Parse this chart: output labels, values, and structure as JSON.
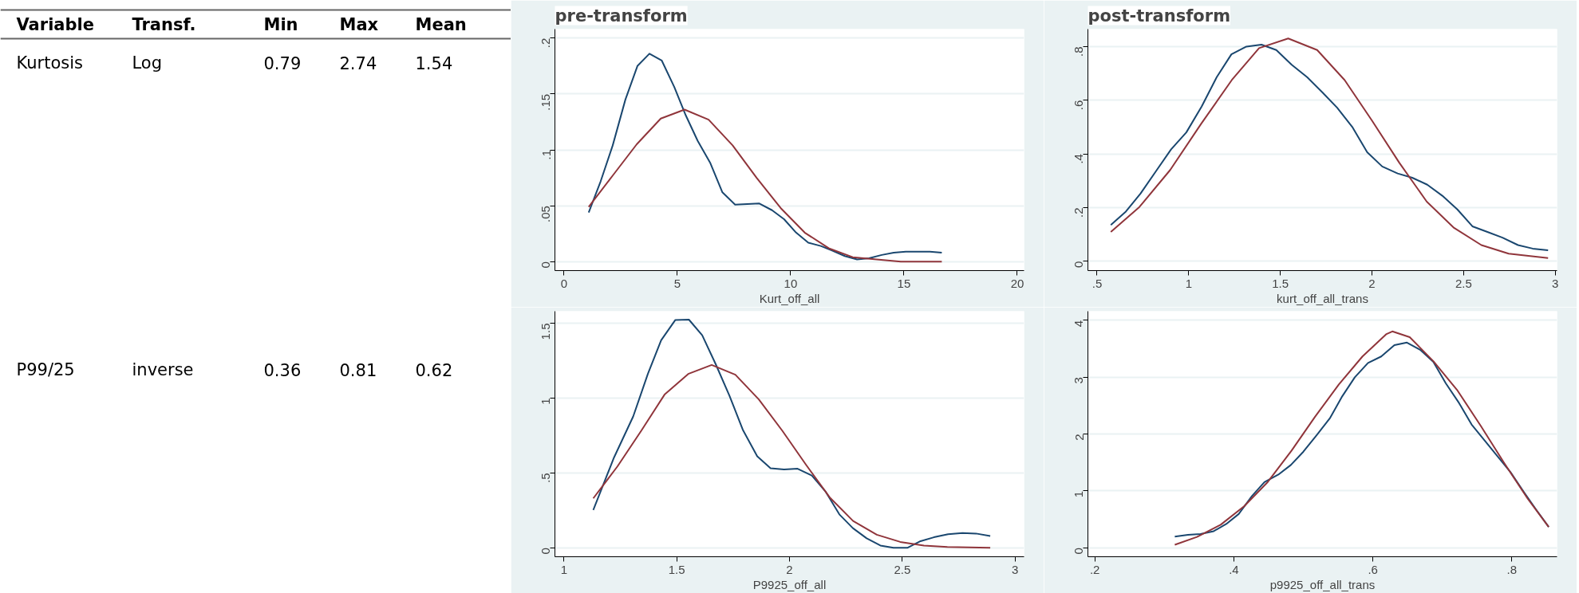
{
  "chart_data": [
    {
      "type": "other",
      "annotations": [
        "Variable",
        "Transf.",
        "Min",
        "Max",
        "Mean",
        "Kurtosis",
        "Log",
        "0.79",
        "2.74",
        "1.54",
        "P99/25",
        "inverse",
        "0.36",
        "0.81",
        "0.62"
      ]
    },
    {
      "type": "line",
      "title": "pre-transform",
      "xlabel": "Kurt_off_all",
      "grid": "y",
      "xlim": [
        -0.4,
        20.3
      ],
      "ylim": [
        -0.008,
        0.208
      ],
      "xticks": [
        0,
        5,
        10,
        15,
        20
      ],
      "yticks": [
        {
          "value": 0,
          "label": "0"
        },
        {
          "value": 0.05,
          "label": ".05"
        },
        {
          "value": 0.1,
          "label": ".1"
        },
        {
          "value": 0.15,
          "label": ".15"
        },
        {
          "value": 0.2,
          "label": ".2"
        }
      ],
      "series": [
        {
          "color": "#1a476f",
          "x": [
            1.09,
            1.62,
            2.15,
            2.71,
            3.24,
            3.77,
            4.31,
            4.87,
            5.37,
            5.9,
            6.46,
            6.99,
            7.55,
            8.62,
            9.18,
            9.71,
            10.24,
            10.78,
            11.33,
            11.83,
            12.39,
            12.93,
            13.46,
            14.02,
            14.55,
            15.08,
            15.61,
            16.14,
            16.67
          ],
          "values": [
            0.044,
            0.072,
            0.104,
            0.145,
            0.175,
            0.186,
            0.18,
            0.156,
            0.131,
            0.108,
            0.088,
            0.062,
            0.051,
            0.052,
            0.046,
            0.038,
            0.026,
            0.017,
            0.014,
            0.01,
            0.005,
            0.002,
            0.003,
            0.006,
            0.008,
            0.009,
            0.009,
            0.009,
            0.008
          ]
        },
        {
          "color": "#90353b",
          "x": [
            1.09,
            2.15,
            3.21,
            4.27,
            5.32,
            6.38,
            7.44,
            8.5,
            9.56,
            10.62,
            11.68,
            12.74,
            13.8,
            14.86,
            16.67
          ],
          "values": [
            0.049,
            0.077,
            0.105,
            0.128,
            0.136,
            0.127,
            0.104,
            0.075,
            0.048,
            0.026,
            0.012,
            0.004,
            0.002,
            0.0,
            0.0
          ]
        }
      ]
    },
    {
      "type": "line",
      "title": "post-transform",
      "xlabel": "kurt_off_all_trans",
      "grid": "y",
      "xlim": [
        0.45,
        3.01
      ],
      "ylim": [
        -0.035,
        0.865
      ],
      "xticks": [
        {
          "value": 0.5,
          "label": ".5"
        },
        1,
        1.5,
        2,
        2.5,
        3
      ],
      "yticks": [
        {
          "value": 0,
          "label": "0"
        },
        {
          "value": 0.2,
          "label": ".2"
        },
        {
          "value": 0.4,
          "label": ".4"
        },
        {
          "value": 0.6,
          "label": ".6"
        },
        {
          "value": 0.8,
          "label": ".8"
        }
      ],
      "series": [
        {
          "color": "#1a476f",
          "x": [
            0.575,
            0.657,
            0.737,
            0.82,
            0.904,
            0.987,
            1.071,
            1.153,
            1.233,
            1.315,
            1.397,
            1.478,
            1.562,
            1.646,
            1.73,
            1.81,
            1.892,
            1.974,
            2.056,
            2.14,
            2.22,
            2.302,
            2.384,
            2.466,
            2.548,
            2.63,
            2.712,
            2.797,
            2.877,
            2.961
          ],
          "values": [
            0.135,
            0.185,
            0.252,
            0.334,
            0.417,
            0.48,
            0.577,
            0.686,
            0.771,
            0.8,
            0.807,
            0.787,
            0.732,
            0.686,
            0.629,
            0.572,
            0.501,
            0.406,
            0.353,
            0.327,
            0.311,
            0.285,
            0.244,
            0.193,
            0.13,
            0.109,
            0.088,
            0.06,
            0.047,
            0.041
          ]
        },
        {
          "color": "#90353b",
          "x": [
            0.575,
            0.731,
            0.899,
            1.067,
            1.235,
            1.384,
            1.543,
            1.701,
            1.851,
            2.0,
            2.149,
            2.299,
            2.448,
            2.597,
            2.746,
            2.961
          ],
          "values": [
            0.109,
            0.202,
            0.34,
            0.511,
            0.675,
            0.794,
            0.83,
            0.787,
            0.675,
            0.524,
            0.367,
            0.222,
            0.124,
            0.06,
            0.028,
            0.012
          ]
        }
      ]
    },
    {
      "type": "line",
      "xlabel": "P9925_off_all",
      "grid": "y",
      "xlim": [
        0.96,
        3.04
      ],
      "ylim": [
        -0.06,
        1.58
      ],
      "xticks": [
        1,
        1.5,
        2,
        2.5,
        3
      ],
      "yticks": [
        {
          "value": 0,
          "label": "0"
        },
        {
          "value": 0.5,
          "label": ".5"
        },
        1,
        1.5
      ],
      "series": [
        {
          "color": "#1a476f",
          "x": [
            1.13,
            1.222,
            1.307,
            1.372,
            1.431,
            1.494,
            1.554,
            1.613,
            1.673,
            1.734,
            1.794,
            1.857,
            1.916,
            1.976,
            2.036,
            2.099,
            2.161,
            2.221,
            2.281,
            2.342,
            2.403,
            2.461,
            2.524,
            2.581,
            2.64,
            2.703,
            2.767,
            2.827,
            2.89
          ],
          "values": [
            0.252,
            0.603,
            0.877,
            1.161,
            1.386,
            1.522,
            1.524,
            1.42,
            1.226,
            1.015,
            0.785,
            0.611,
            0.531,
            0.523,
            0.528,
            0.482,
            0.373,
            0.223,
            0.131,
            0.063,
            0.015,
            0.0,
            0.0,
            0.044,
            0.07,
            0.09,
            0.099,
            0.095,
            0.078
          ]
        },
        {
          "color": "#90353b",
          "x": [
            1.13,
            1.237,
            1.342,
            1.446,
            1.551,
            1.655,
            1.76,
            1.864,
            1.969,
            2.073,
            2.178,
            2.282,
            2.387,
            2.491,
            2.596,
            2.7,
            2.89
          ],
          "values": [
            0.33,
            0.543,
            0.78,
            1.023,
            1.161,
            1.221,
            1.156,
            0.991,
            0.78,
            0.555,
            0.337,
            0.179,
            0.087,
            0.039,
            0.015,
            0.005,
            0.0
          ]
        }
      ]
    },
    {
      "type": "line",
      "xlabel": "p9925_off_all_trans",
      "grid": "y",
      "xlim": [
        0.19,
        0.865
      ],
      "ylim": [
        -0.16,
        4.16
      ],
      "xticks": [
        {
          "value": 0.2,
          "label": ".2"
        },
        {
          "value": 0.4,
          "label": ".4"
        },
        {
          "value": 0.6,
          "label": ".6"
        },
        {
          "value": 0.8,
          "label": ".8"
        }
      ],
      "yticks": [
        0,
        1,
        2,
        3,
        4
      ],
      "series": [
        {
          "color": "#1a476f",
          "x": [
            0.315,
            0.334,
            0.352,
            0.371,
            0.389,
            0.407,
            0.426,
            0.444,
            0.464,
            0.482,
            0.5,
            0.519,
            0.538,
            0.556,
            0.574,
            0.593,
            0.612,
            0.631,
            0.649,
            0.668,
            0.687,
            0.705,
            0.724,
            0.742,
            0.761,
            0.779,
            0.798,
            0.817,
            0.835,
            0.853
          ],
          "values": [
            0.195,
            0.227,
            0.239,
            0.29,
            0.416,
            0.592,
            0.907,
            1.153,
            1.285,
            1.455,
            1.688,
            1.978,
            2.274,
            2.665,
            2.998,
            3.25,
            3.364,
            3.565,
            3.609,
            3.483,
            3.269,
            2.891,
            2.545,
            2.167,
            1.883,
            1.613,
            1.329,
            0.983,
            0.668,
            0.365
          ]
        },
        {
          "color": "#90353b",
          "x": [
            0.315,
            0.347,
            0.381,
            0.415,
            0.449,
            0.483,
            0.517,
            0.551,
            0.585,
            0.619,
            0.628,
            0.653,
            0.687,
            0.721,
            0.755,
            0.789,
            0.823,
            0.853
          ],
          "values": [
            0.05,
            0.189,
            0.403,
            0.731,
            1.159,
            1.707,
            2.306,
            2.872,
            3.364,
            3.754,
            3.805,
            3.704,
            3.282,
            2.778,
            2.148,
            1.487,
            0.857,
            0.365
          ]
        }
      ]
    }
  ]
}
